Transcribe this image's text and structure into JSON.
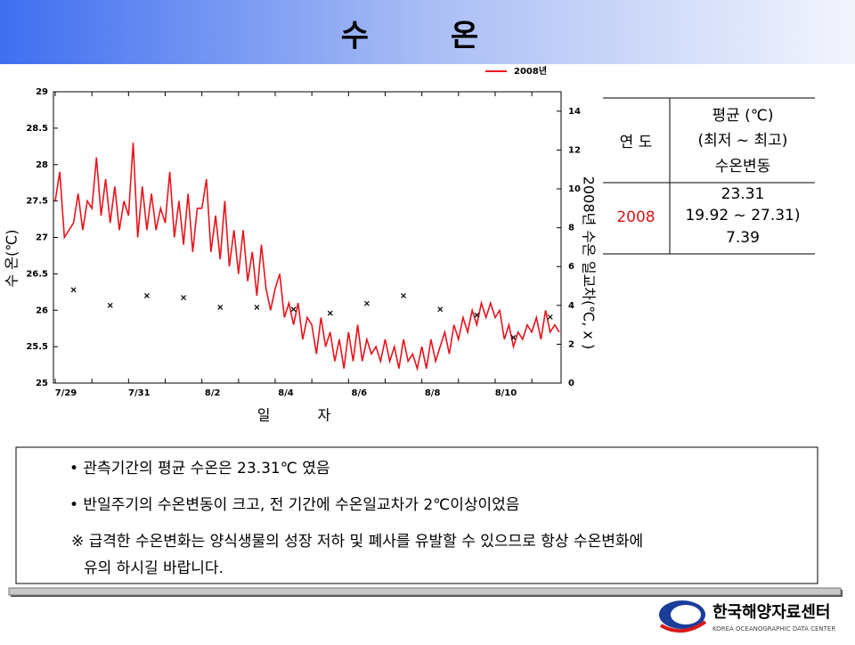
{
  "header": {
    "title": "수 온"
  },
  "chart_data": {
    "type": "line",
    "y_label": "수 온(℃)",
    "y2_label": "2008년 수온 일교차(℃, x )",
    "x_label": "일 자",
    "ylim": [
      25,
      29
    ],
    "yticks": [
      25,
      25.5,
      26,
      26.5,
      27,
      27.5,
      28,
      28.5,
      29
    ],
    "y2lim": [
      0,
      15
    ],
    "y2ticks": [
      0,
      2,
      4,
      6,
      8,
      10,
      12,
      14
    ],
    "legend": "top-right",
    "categories": [
      "7/29",
      null,
      null,
      null,
      null,
      null,
      null,
      null,
      null,
      null,
      null,
      null,
      null,
      null,
      null,
      null,
      "7/31",
      null,
      null,
      null,
      null,
      null,
      null,
      null,
      null,
      null,
      null,
      null,
      null,
      null,
      null,
      null,
      "8/2",
      null,
      null,
      null,
      null,
      null,
      null,
      null,
      null,
      null,
      null,
      null,
      null,
      null,
      null,
      null,
      "8/4",
      null,
      null,
      null,
      null,
      null,
      null,
      null,
      null,
      null,
      null,
      null,
      null,
      null,
      null,
      null,
      "8/6",
      null,
      null,
      null,
      null,
      null,
      null,
      null,
      null,
      null,
      null,
      null,
      null,
      null,
      null,
      null,
      "8/8",
      null,
      null,
      null,
      null,
      null,
      null,
      null,
      null,
      null,
      null,
      null,
      null,
      null,
      null,
      null,
      "8/10",
      null,
      null,
      null,
      null,
      null,
      null,
      null,
      null,
      null,
      null,
      null,
      null,
      null,
      null
    ],
    "series": [
      {
        "name": "2008년",
        "color": "#e8141c",
        "values": [
          27.5,
          27.9,
          27.0,
          27.1,
          27.2,
          27.6,
          27.1,
          27.5,
          27.4,
          28.1,
          27.3,
          27.8,
          27.2,
          27.7,
          27.1,
          27.5,
          27.3,
          28.3,
          27.0,
          27.7,
          27.1,
          27.6,
          27.1,
          27.4,
          27.2,
          27.9,
          27.0,
          27.5,
          26.9,
          27.6,
          26.8,
          27.4,
          27.4,
          27.8,
          26.8,
          27.3,
          26.7,
          27.5,
          26.6,
          27.1,
          26.5,
          27.1,
          26.4,
          26.8,
          26.2,
          26.9,
          26.3,
          26.0,
          26.3,
          26.5,
          25.9,
          26.1,
          25.8,
          26.1,
          25.6,
          25.9,
          25.8,
          25.4,
          25.9,
          25.5,
          25.7,
          25.3,
          25.6,
          25.2,
          25.7,
          25.3,
          25.8,
          25.3,
          25.6,
          25.4,
          25.5,
          25.3,
          25.6,
          25.3,
          25.5,
          25.2,
          25.6,
          25.3,
          25.4,
          25.2,
          25.5,
          25.2,
          25.6,
          25.3,
          25.5,
          25.7,
          25.4,
          25.8,
          25.6,
          25.9,
          25.7,
          26.0,
          25.8,
          26.1,
          25.9,
          26.1,
          25.9,
          26.0,
          25.6,
          25.8,
          25.5,
          25.7,
          25.6,
          25.8,
          25.7,
          25.9,
          25.6,
          26.0,
          25.7,
          25.8,
          25.7
        ]
      },
      {
        "color": "#000000",
        "marker": "x",
        "axis": "y2",
        "values": [
          null,
          null,
          null,
          null,
          4.8,
          null,
          null,
          null,
          null,
          null,
          null,
          null,
          4.0,
          null,
          null,
          null,
          null,
          null,
          null,
          null,
          4.5,
          null,
          null,
          null,
          null,
          null,
          null,
          null,
          4.4,
          null,
          null,
          null,
          null,
          null,
          null,
          null,
          3.9,
          null,
          null,
          null,
          null,
          null,
          null,
          null,
          3.9,
          null,
          null,
          null,
          null,
          null,
          null,
          null,
          3.8,
          null,
          null,
          null,
          null,
          null,
          null,
          null,
          3.6,
          null,
          null,
          null,
          null,
          null,
          null,
          null,
          4.1,
          null,
          null,
          null,
          null,
          null,
          null,
          null,
          4.5,
          null,
          null,
          null,
          null,
          null,
          null,
          null,
          3.8,
          null,
          null,
          null,
          null,
          null,
          null,
          null,
          3.5,
          null,
          null,
          null,
          null,
          null,
          null,
          null,
          2.35,
          null,
          null,
          null,
          null,
          null,
          null,
          null,
          3.4,
          null,
          null
        ]
      }
    ]
  },
  "table": {
    "header": [
      "연 도",
      [
        "평균 (℃)",
        "(최저 ~ 최고)",
        "수온변동"
      ]
    ],
    "rows": [
      [
        "2008",
        [
          "23.31",
          "19.92 ~ 27.31)",
          "7.39"
        ]
      ]
    ]
  },
  "notes": [
    "• 관측기간의 평균 수온은 23.31℃ 였음",
    "• 반일주기의 수온변동이 크고, 전 기간에 수온일교차가 2℃이상이었음",
    "※ 급격한 수온변화는 양식생물의 성장 저하 및 폐사를 유발할 수 있으므로 항상 수온변화에",
    "유의 하시길 바랍니다."
  ],
  "footer": {
    "logo": "한국해양자료센터",
    "logo_sub": "KOREA OCEANOGRAPHIC DATA CENTER"
  }
}
